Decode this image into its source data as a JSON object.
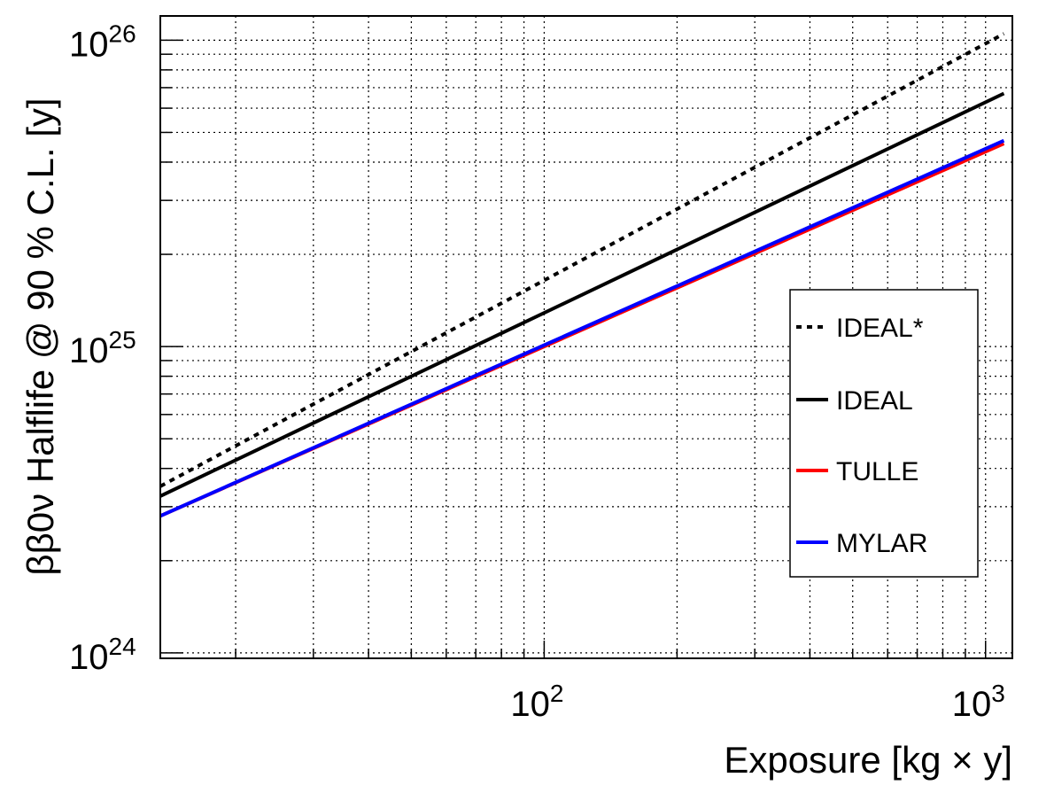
{
  "chart_data": {
    "type": "line",
    "title": "",
    "xlabel": "Exposure [kg × y]",
    "ylabel": "ββ0ν Halflife @ 90 % C.L. [y]",
    "xscale": "log",
    "yscale": "log",
    "xlim": [
      13.5,
      1150
    ],
    "ylim": [
      9.6e+23,
      1.2e+26
    ],
    "grid": true,
    "legend_position": "right",
    "x_tick_labels": [
      {
        "base": "10",
        "exp": "2",
        "value": 100
      },
      {
        "base": "10",
        "exp": "3",
        "value": 1000
      }
    ],
    "y_tick_labels": [
      {
        "base": "10",
        "exp": "24",
        "value": 1e+24
      },
      {
        "base": "10",
        "exp": "25",
        "value": 1e+25
      },
      {
        "base": "10",
        "exp": "26",
        "value": 1e+26
      }
    ],
    "series": [
      {
        "name": "IDEAL*",
        "color": "#000000",
        "dash": "dotted",
        "x": [
          13.5,
          1100
        ],
        "y": [
          3.5e+24,
          1.05e+26
        ]
      },
      {
        "name": "IDEAL",
        "color": "#000000",
        "dash": "solid",
        "x": [
          13.5,
          1100
        ],
        "y": [
          3.25e+24,
          6.7e+25
        ]
      },
      {
        "name": "TULLE",
        "color": "#ff0000",
        "dash": "solid",
        "x": [
          13.5,
          1100
        ],
        "y": [
          2.8e+24,
          4.6e+25
        ]
      },
      {
        "name": "MYLAR",
        "color": "#0000ff",
        "dash": "solid",
        "x": [
          13.5,
          1100
        ],
        "y": [
          2.8e+24,
          4.7e+25
        ]
      }
    ]
  }
}
